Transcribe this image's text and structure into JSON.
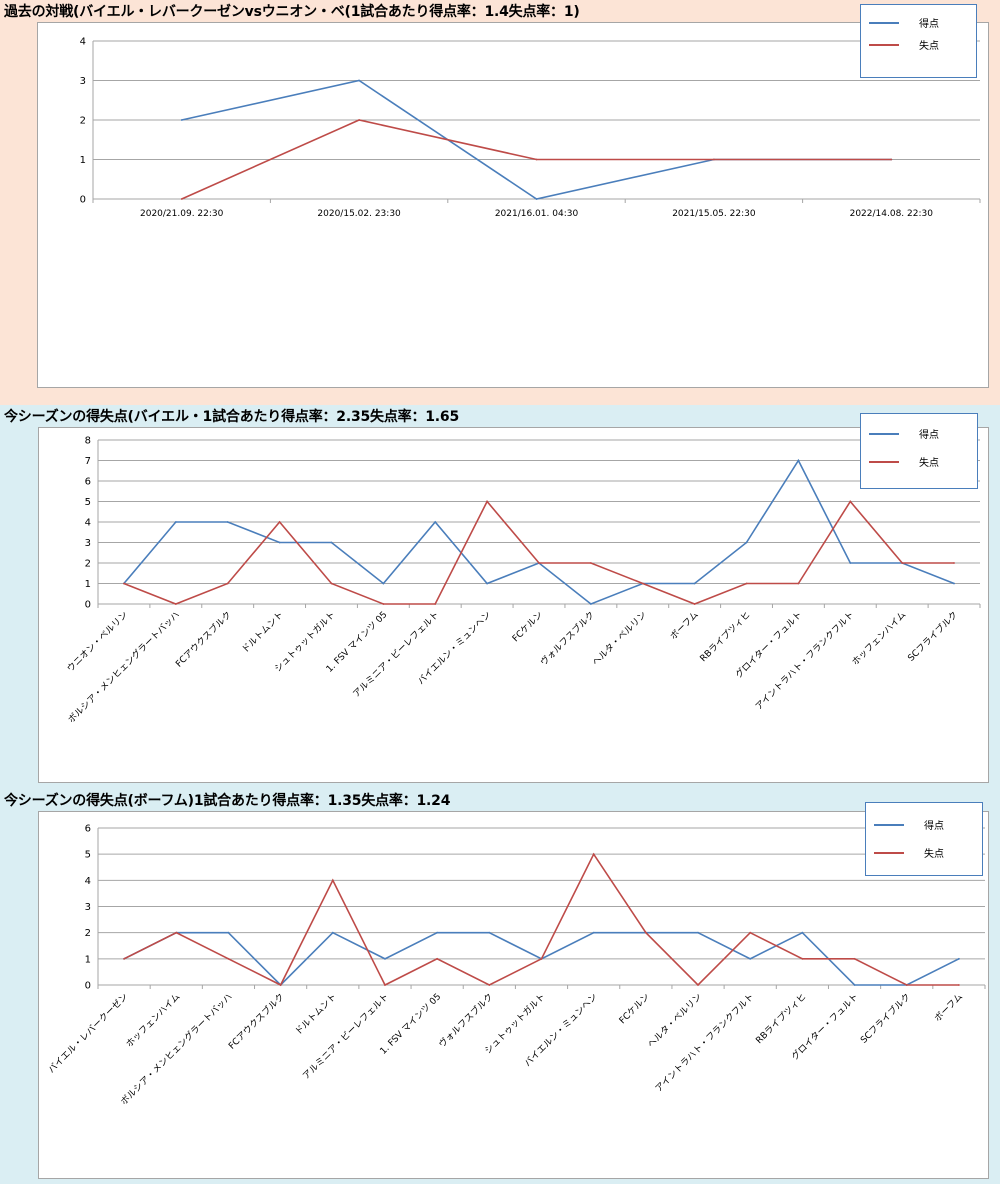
{
  "colors": {
    "scored": "#4a7ebb",
    "conceded": "#be4b48",
    "grid": "#a6a6a6"
  },
  "sections": [
    {
      "title": "過去の対戦(バイエル・レバークーゼンvsウニオン・ベ(1試合あたり得点率：1.4失点率：1)",
      "chart_data": {
        "type": "line",
        "title": "過去の対戦(バイエル・レバークーゼンvsウニオン・ベ(1試合あたり得点率：1.4失点率：1)",
        "categories": [
          "2020/21.09. 22:30",
          "2020/15.02. 23:30",
          "2021/16.01. 04:30",
          "2021/15.05. 22:30",
          "2022/14.08. 22:30"
        ],
        "series": [
          {
            "name": "得点",
            "values": [
              2,
              3,
              0,
              1,
              1
            ]
          },
          {
            "name": "失点",
            "values": [
              0,
              2,
              1,
              1,
              1
            ]
          }
        ],
        "ylim": [
          0,
          4
        ],
        "yticks": [
          0,
          1,
          2,
          3,
          4
        ],
        "xlabel": "",
        "ylabel": "",
        "legend": "top-right",
        "grid": true
      }
    },
    {
      "title": "今シーズンの得失点(バイエル・1試合あたり得点率：2.35失点率：1.65",
      "chart_data": {
        "type": "line",
        "title": "今シーズンの得失点(バイエル・1試合あたり得点率：2.35失点率：1.65",
        "categories": [
          "ウニオン・ベルリン",
          "ボルシア・メンヒェングラートバッハ",
          "FCアウクスブルク",
          "ドルトムント",
          "シュトゥットガルト",
          "1. FSV マインツ 05",
          "アルミニア・ビーレフェルト",
          "バイエルン・ミュンヘン",
          "FCケルン",
          "ヴォルフスブルク",
          "ヘルタ・ベルリン",
          "ボーフム",
          "RBライプツィヒ",
          "グロイター・フュルト",
          "アイントラハト・フランクフルト",
          "ホッフェンハイム",
          "SCフライブルク"
        ],
        "series": [
          {
            "name": "得点",
            "values": [
              1,
              4,
              4,
              3,
              3,
              1,
              4,
              1,
              2,
              0,
              1,
              1,
              3,
              7,
              2,
              2,
              1
            ]
          },
          {
            "name": "失点",
            "values": [
              1,
              0,
              1,
              4,
              1,
              0,
              0,
              5,
              2,
              2,
              1,
              0,
              1,
              1,
              5,
              2,
              2
            ]
          }
        ],
        "ylim": [
          0,
          8
        ],
        "yticks": [
          0,
          1,
          2,
          3,
          4,
          5,
          6,
          7,
          8
        ],
        "xlabel": "",
        "ylabel": "",
        "legend": "top-right",
        "grid": true
      }
    },
    {
      "title": "今シーズンの得失点(ボーフム)1試合あたり得点率：1.35失点率：1.24",
      "chart_data": {
        "type": "line",
        "title": "今シーズンの得失点(ボーフム)1試合あたり得点率：1.35失点率：1.24",
        "categories": [
          "バイエル・レバークーゼン",
          "ホッフェンハイム",
          "ボルシア・メンヒェングラートバッハ",
          "FCアウクスブルク",
          "ドルトムント",
          "アルミニア・ビーレフェルト",
          "1. FSV マインツ 05",
          "ヴォルフスブルク",
          "シュトゥットガルト",
          "バイエルン・ミュンヘン",
          "FCケルン",
          "ヘルタ・ベルリン",
          "アイントラハト・フランクフルト",
          "RBライプツィヒ",
          "グロイター・フュルト",
          "SCフライブルク",
          "ボーフム"
        ],
        "series": [
          {
            "name": "得点",
            "values": [
              1,
              2,
              2,
              0,
              2,
              1,
              2,
              2,
              1,
              2,
              2,
              2,
              1,
              2,
              0,
              0,
              1
            ]
          },
          {
            "name": "失点",
            "values": [
              1,
              2,
              1,
              0,
              4,
              0,
              1,
              0,
              1,
              5,
              2,
              0,
              2,
              1,
              1,
              0,
              0
            ]
          }
        ],
        "ylim": [
          0,
          6
        ],
        "yticks": [
          0,
          1,
          2,
          3,
          4,
          5,
          6
        ],
        "xlabel": "",
        "ylabel": "",
        "legend": "top-right",
        "grid": true
      }
    }
  ]
}
